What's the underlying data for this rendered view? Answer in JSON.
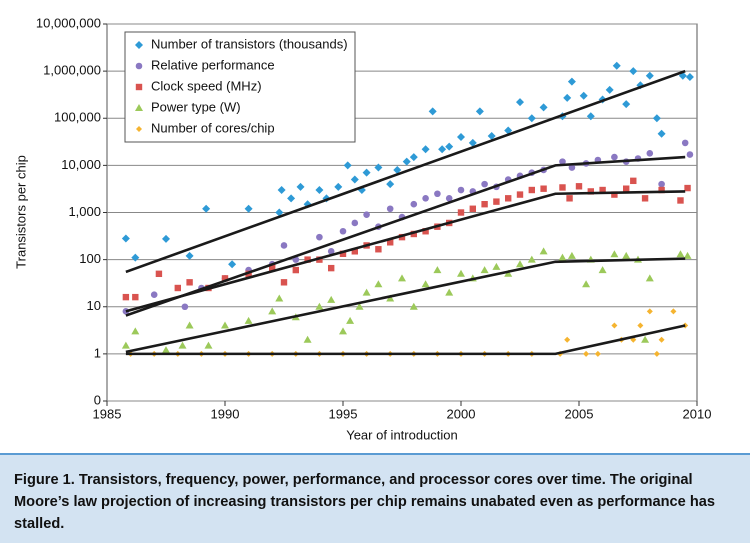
{
  "chart_data": {
    "type": "scatter",
    "y_label": "Transistors per chip",
    "x_label": "Year of introduction",
    "log_y": true,
    "grid": true,
    "legend": "upper left",
    "xlim": [
      1985,
      2010
    ],
    "xticks": [
      1985,
      1990,
      1995,
      2000,
      2005,
      2010
    ],
    "ylim": [
      0.1,
      10000000
    ],
    "yticks": [
      {
        "value": 0.1,
        "label": "0"
      },
      1,
      10,
      100,
      {
        "value": 1000,
        "label": "1,000"
      },
      {
        "value": 10000,
        "label": "10,000"
      },
      {
        "value": 100000,
        "label": "100,000"
      },
      {
        "value": 1000000,
        "label": "1,000,000"
      },
      {
        "value": 10000000,
        "label": "10,000,000"
      }
    ],
    "series": [
      {
        "name": "Number of transistors (thousands)",
        "color": "#2e9ad6",
        "marker": "diamond",
        "x": [
          1985.8,
          1986.2,
          1987.5,
          1988.5,
          1989.2,
          1990.3,
          1991,
          1992.3,
          1992.4,
          1992.8,
          1993.2,
          1993.5,
          1994,
          1994.3,
          1994.8,
          1995.2,
          1995.5,
          1995.8,
          1996,
          1996.5,
          1997,
          1997.3,
          1997.7,
          1998,
          1998.5,
          1998.8,
          1999.2,
          1999.5,
          2000,
          2000.5,
          2000.8,
          2001.3,
          2002,
          2002.5,
          2003,
          2003.5,
          2004.3,
          2004.5,
          2004.7,
          2005.2,
          2005.5,
          2006,
          2006.3,
          2006.6,
          2007,
          2007.3,
          2007.6,
          2008,
          2008.3,
          2008.5,
          2009.4,
          2009.7
        ],
        "values": [
          280,
          110,
          275,
          120,
          1200,
          80,
          1200,
          1000,
          3000,
          2000,
          3500,
          1500,
          3000,
          2000,
          3500,
          10000,
          5000,
          3000,
          7000,
          9000,
          4000,
          8000,
          12000,
          15000,
          22000,
          140000,
          22000,
          25000,
          40000,
          30000,
          140000,
          42000,
          55000,
          220000,
          100000,
          170000,
          110000,
          270000,
          600000,
          300000,
          110000,
          250000,
          400000,
          1300000,
          200000,
          1000000,
          500000,
          800000,
          100000,
          47000,
          800000,
          750000
        ]
      },
      {
        "name": "Relative performance",
        "color": "#8a78c2",
        "marker": "circle",
        "x": [
          1985.8,
          1987,
          1988.3,
          1989,
          1990,
          1991,
          1992,
          1992.5,
          1993,
          1994,
          1994.5,
          1995,
          1995.5,
          1996,
          1996.5,
          1997,
          1997.5,
          1998,
          1998.5,
          1999,
          1999.5,
          2000,
          2000.5,
          2001,
          2001.5,
          2002,
          2002.5,
          2003,
          2003.5,
          2004.3,
          2004.7,
          2005.3,
          2005.8,
          2006.5,
          2007,
          2007.5,
          2008,
          2008.5,
          2009.5,
          2009.7
        ],
        "values": [
          8,
          18,
          10,
          25,
          40,
          60,
          80,
          200,
          100,
          300,
          150,
          400,
          600,
          900,
          500,
          1200,
          800,
          1500,
          2000,
          2500,
          2000,
          3000,
          2800,
          4000,
          3500,
          5000,
          6000,
          7000,
          8000,
          12000,
          9000,
          11000,
          13000,
          15000,
          12000,
          14000,
          18000,
          4000,
          30000,
          17000
        ]
      },
      {
        "name": "Clock speed (MHz)",
        "color": "#d9534f",
        "marker": "square",
        "x": [
          1985.8,
          1986.2,
          1987.2,
          1988,
          1988.5,
          1989.3,
          1990,
          1991,
          1992,
          1992.5,
          1993,
          1993.5,
          1994,
          1994.5,
          1995,
          1995.5,
          1996,
          1996.5,
          1997,
          1997.5,
          1998,
          1998.5,
          1999,
          1999.5,
          2000,
          2000.5,
          2001,
          2001.5,
          2002,
          2002.5,
          2003,
          2003.5,
          2004.3,
          2004.6,
          2005,
          2005.5,
          2006,
          2006.5,
          2007,
          2007.3,
          2007.8,
          2008.5,
          2009.3,
          2009.6
        ],
        "values": [
          16,
          16,
          50,
          25,
          33,
          25,
          40,
          50,
          66,
          33,
          60,
          100,
          100,
          66,
          133,
          150,
          200,
          166,
          233,
          300,
          350,
          400,
          500,
          600,
          1000,
          1200,
          1500,
          1700,
          2000,
          2400,
          3000,
          3200,
          3400,
          2000,
          3600,
          2800,
          3000,
          2400,
          3200,
          4700,
          2000,
          3000,
          1800,
          3300
        ]
      },
      {
        "name": "Power type (W)",
        "color": "#9cc95a",
        "marker": "triangle",
        "x": [
          1985.8,
          1986.2,
          1987.5,
          1988.2,
          1988.5,
          1989.3,
          1990,
          1991,
          1992,
          1992.3,
          1993,
          1993.5,
          1994,
          1994.5,
          1995,
          1995.3,
          1995.7,
          1996,
          1996.5,
          1997,
          1997.5,
          1998,
          1998.5,
          1999,
          1999.5,
          2000,
          2000.5,
          2001,
          2001.5,
          2002,
          2002.5,
          2003,
          2003.5,
          2004.3,
          2004.7,
          2005.3,
          2005.5,
          2006,
          2006.5,
          2007,
          2007.5,
          2007.8,
          2008,
          2009.3,
          2009.6
        ],
        "values": [
          1.5,
          3,
          1.2,
          1.5,
          4,
          1.5,
          4,
          5,
          8,
          15,
          6,
          2,
          10,
          14,
          3,
          5,
          10,
          20,
          30,
          15,
          40,
          10,
          30,
          60,
          20,
          50,
          40,
          60,
          70,
          50,
          80,
          100,
          150,
          110,
          120,
          30,
          100,
          60,
          130,
          120,
          100,
          2,
          40,
          130,
          120
        ]
      },
      {
        "name": "Number of cores/chip",
        "color": "#f5b430",
        "marker": "small-diamond",
        "x": [
          1986,
          1987,
          1988,
          1989,
          1990,
          1991,
          1992,
          1993,
          1994,
          1995,
          1996,
          1997,
          1998,
          1999,
          2000,
          2001,
          2002,
          2003,
          2004.2,
          2004.5,
          2005.3,
          2005.8,
          2006.5,
          2006.8,
          2007.3,
          2007.6,
          2008,
          2008.3,
          2008.5,
          2009,
          2009.5
        ],
        "values": [
          1,
          1,
          1,
          1,
          1,
          1,
          1,
          1,
          1,
          1,
          1,
          1,
          1,
          1,
          1,
          1,
          1,
          1,
          1,
          2,
          1,
          1,
          4,
          2,
          2,
          4,
          8,
          1,
          2,
          8,
          4
        ]
      }
    ],
    "trend_lines": [
      {
        "x": [
          1985.8,
          2009.5
        ],
        "values": [
          55,
          1000000
        ]
      },
      {
        "x": [
          1985.8,
          2004,
          2009.5
        ],
        "values": [
          6.5,
          10000,
          15000
        ]
      },
      {
        "x": [
          1985.8,
          2004,
          2009.5
        ],
        "values": [
          8,
          2500,
          2800
        ]
      },
      {
        "x": [
          1985.8,
          2004,
          2009.5
        ],
        "values": [
          1.1,
          90,
          105
        ]
      },
      {
        "x": [
          1985.8,
          2004,
          2009.5
        ],
        "values": [
          1,
          1,
          4
        ]
      }
    ],
    "caption_label": "Figure 1.",
    "caption_text": "Transistors, frequency, power, performance, and processor cores over time. The original Moore’s law projection of increasing transistors per chip remains unabated even as performance has stalled."
  }
}
